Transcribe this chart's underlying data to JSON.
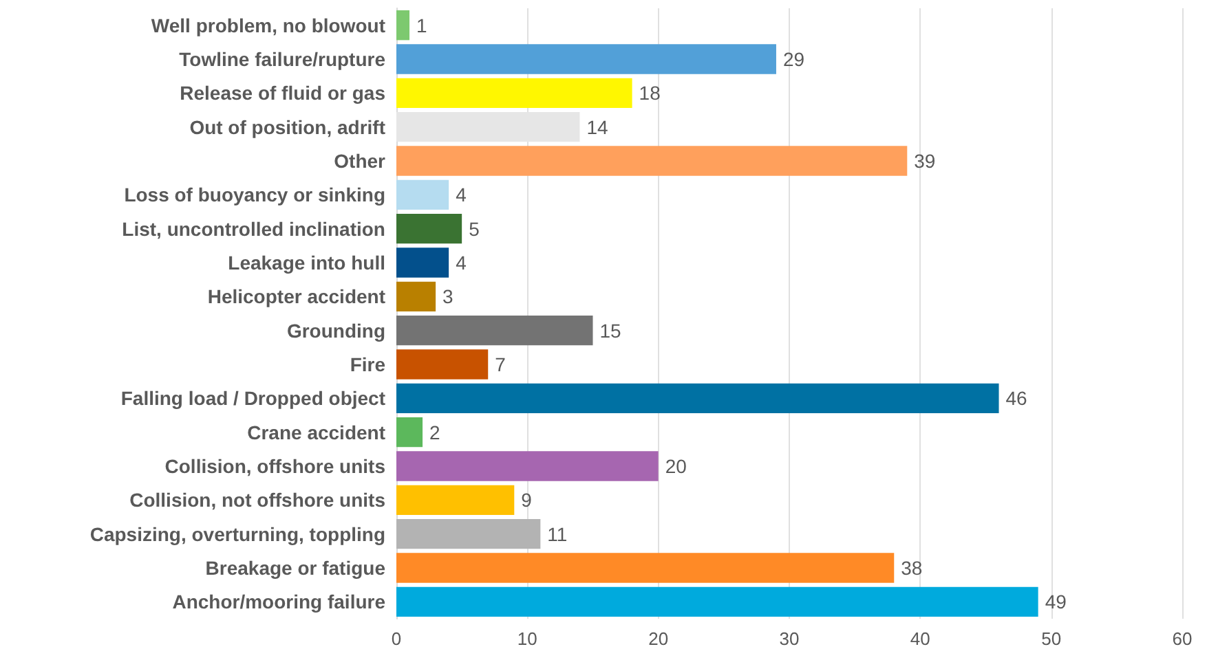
{
  "chart_data": {
    "type": "bar",
    "orientation": "horizontal",
    "categories": [
      "Well problem, no blowout",
      "Towline failure/rupture",
      "Release of fluid or gas",
      "Out of position, adrift",
      "Other",
      "Loss of buoyancy or sinking",
      "List, uncontrolled inclination",
      "Leakage into hull",
      "Helicopter accident",
      "Grounding",
      "Fire",
      "Falling load / Dropped object",
      "Crane accident",
      "Collision, offshore units",
      "Collision, not offshore units",
      "Capsizing, overturning, toppling",
      "Breakage or fatigue",
      "Anchor/mooring failure"
    ],
    "values": [
      1,
      29,
      18,
      14,
      39,
      4,
      5,
      4,
      3,
      15,
      7,
      46,
      2,
      20,
      9,
      11,
      38,
      49
    ],
    "colors": [
      "#7dc96f",
      "#52a0d8",
      "#fff700",
      "#e6e6e6",
      "#ffa05c",
      "#b5dcf0",
      "#3a7332",
      "#03508c",
      "#b98000",
      "#737373",
      "#c85200",
      "#0071a3",
      "#5cb85c",
      "#a666b0",
      "#ffc000",
      "#b3b3b3",
      "#ff8a26",
      "#00aadd"
    ],
    "xlim": [
      0,
      60
    ],
    "xticks": [
      0,
      10,
      20,
      30,
      40,
      50,
      60
    ],
    "grid": "x",
    "data_labels": true
  }
}
